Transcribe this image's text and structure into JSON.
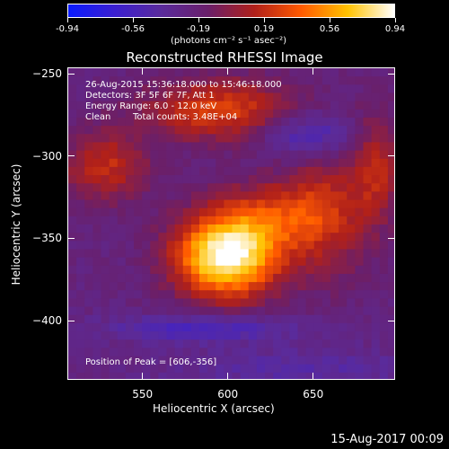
{
  "colorbar": {
    "ticks": [
      "-0.94",
      "-0.56",
      "-0.19",
      "0.19",
      "0.56",
      "0.94"
    ],
    "unit_label": "(photons cm⁻² s⁻¹ asec⁻²)",
    "colors": [
      "#0a1bff",
      "#3b1fd0",
      "#5a2b9c",
      "#6a1f6a",
      "#b0201a",
      "#ff5a00",
      "#ffc200",
      "#ffffff"
    ]
  },
  "chart_data": {
    "type": "heatmap",
    "title": "Reconstructed RHESSI Image",
    "xlabel": "Heliocentric X (arcsec)",
    "ylabel": "Heliocentric Y (arcsec)",
    "x_ticks": [
      "550",
      "600",
      "650"
    ],
    "y_ticks": [
      "-250",
      "-300",
      "-350",
      "-400"
    ],
    "xlim": [
      506,
      698
    ],
    "ylim": [
      -436,
      -246
    ],
    "value_range": [
      -0.94,
      0.94
    ],
    "peak": {
      "x": 606,
      "y": -356
    }
  },
  "annotations": {
    "time_range": "26-Aug-2015 15:36:18.000 to 15:46:18.000",
    "detectors": "Detectors: 3F 5F 6F 7F, Att 1",
    "energy": "Energy Range: 6.0 - 12.0 keV",
    "clean_label": "Clean",
    "total_counts": "Total counts: 3.48E+04",
    "peak_label": "Position of Peak = [606,-356]"
  },
  "footer": {
    "timestamp": "15-Aug-2017 00:09"
  }
}
